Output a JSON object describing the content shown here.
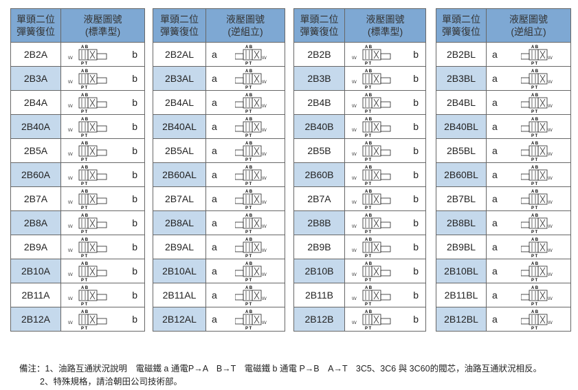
{
  "tables": [
    {
      "header": [
        "單頭二位\n彈簧復位",
        "液壓圖號\n(標準型)"
      ],
      "side": "right",
      "rows": [
        "2B2A",
        "2B3A",
        "2B4A",
        "2B40A",
        "2B5A",
        "2B60A",
        "2B7A",
        "2B8A",
        "2B9A",
        "2B10A",
        "2B11A",
        "2B12A"
      ],
      "letter": "b"
    },
    {
      "header": [
        "單頭二位\n彈簧復位",
        "液壓圖號\n(逆組立)"
      ],
      "side": "left",
      "rows": [
        "2B2AL",
        "2B3AL",
        "2B4AL",
        "2B40AL",
        "2B5AL",
        "2B60AL",
        "2B7AL",
        "2B8AL",
        "2B9AL",
        "2B10AL",
        "2B11AL",
        "2B12AL"
      ],
      "letter": "a"
    },
    {
      "header": [
        "單頭二位\n彈簧復位",
        "液壓圖號\n(標準型)"
      ],
      "side": "right",
      "rows": [
        "2B2B",
        "2B3B",
        "2B4B",
        "2B40B",
        "2B5B",
        "2B60B",
        "2B7A",
        "2B8B",
        "2B9B",
        "2B10B",
        "2B11B",
        "2B12B"
      ],
      "letter": "b"
    },
    {
      "header": [
        "單頭二位\n彈簧復位",
        "液壓圖號\n(逆組立)"
      ],
      "side": "left",
      "rows": [
        "2B2BL",
        "2B3BL",
        "2B4BL",
        "2B40BL",
        "2B5BL",
        "2B60BL",
        "2B7BL",
        "2B8BL",
        "2B9BL",
        "2B10BL",
        "2B11BL",
        "2B12BL"
      ],
      "letter": "a"
    }
  ],
  "port_labels": {
    "top": "A B",
    "bottom": "P T"
  },
  "colors": {
    "header": "#7ea8d3",
    "alt_row": "#c5d9ec"
  },
  "notes": [
    "備注：1、油路互通狀況說明　電磁鐵 a 通電P→A　B→T　電磁鐵 b 通電 P→B　A→T　3C5、3C6 與 3C60的閥芯，油路互通狀況相反。",
    "2、特殊規格，請洽朝田公司技術部。"
  ]
}
